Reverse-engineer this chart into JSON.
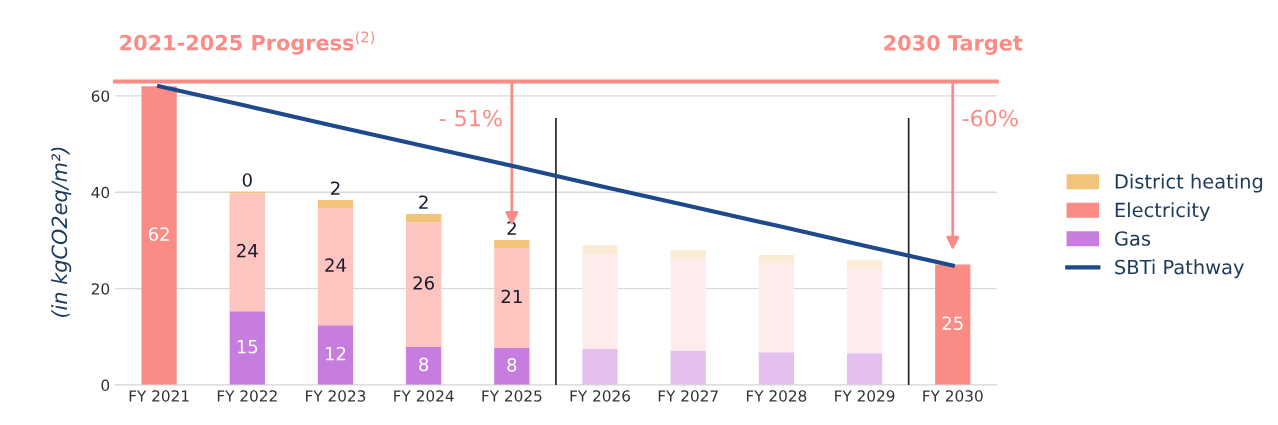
{
  "chart_data": {
    "type": "bar",
    "stacked": true,
    "categories": [
      "FY 2021",
      "FY 2022",
      "FY 2023",
      "FY 2024",
      "FY 2025",
      "FY 2026",
      "FY 2027",
      "FY 2028",
      "FY 2029",
      "FY 2030"
    ],
    "ylabel": "(in kgCO2eq/m²)",
    "ylim": [
      0,
      63.5
    ],
    "yticks": [
      0,
      20,
      40,
      60
    ],
    "grid": "y",
    "legend": "right",
    "series": [
      {
        "name": "Gas",
        "color": "#c77de0",
        "values": [
          null,
          15.3,
          12.4,
          7.9,
          7.7,
          7.5,
          7.1,
          6.8,
          6.6,
          null
        ],
        "colors": [
          "#c77de0",
          "#c77de0",
          "#c77de0",
          "#c77de0",
          "#c77de0",
          "#e3c0ef",
          "#e3c0ef",
          "#e3c0ef",
          "#e3c0ef",
          "#c77de0"
        ],
        "value_labels": [
          null,
          "15",
          "12",
          "8",
          "8",
          null,
          null,
          null,
          null,
          null
        ]
      },
      {
        "name": "Electricity",
        "color": "#fa8c85",
        "values": [
          62,
          24.5,
          24.3,
          25.9,
          20.7,
          19.7,
          19.0,
          18.5,
          17.7,
          25
        ],
        "colors": [
          "#fa8c85",
          "#fdc4c0",
          "#fdc4c0",
          "#fdc4c0",
          "#fdc4c0",
          "#fdeceb",
          "#fdeceb",
          "#fdeceb",
          "#fdeceb",
          "#fa8c85"
        ],
        "value_labels": [
          "62",
          "24",
          "24",
          "26",
          "21",
          null,
          null,
          null,
          null,
          "25"
        ]
      },
      {
        "name": "District heating",
        "color": "#f2c47a",
        "values": [
          null,
          0.3,
          1.7,
          1.7,
          1.7,
          1.8,
          1.9,
          1.7,
          1.6,
          null
        ],
        "colors": [
          "#f2c47a",
          "#f2c47a",
          "#f2c47a",
          "#f2c47a",
          "#f2c47a",
          "#faebd5",
          "#faebd5",
          "#faebd5",
          "#faebd5",
          "#f2c47a"
        ],
        "value_labels": [
          null,
          "0",
          "2",
          "2",
          "2",
          null,
          null,
          null,
          null,
          null
        ]
      },
      {
        "name": "SBTi Pathway",
        "type": "line",
        "color": "#1e4a8c",
        "values": [
          62,
          57.9,
          53.7,
          49.6,
          45.5,
          41.3,
          37.2,
          33.1,
          28.9,
          24.8
        ]
      }
    ],
    "ref_lines": [
      {
        "axis": "y",
        "value": 63,
        "color": "#fa8c85"
      }
    ],
    "annotations": [
      {
        "text": "2021-2025 Progress$^{(2)}$",
        "x": "FY 2022",
        "y": 63
      },
      {
        "text": "2030 Target",
        "x": "FY 2030",
        "y": 63
      },
      "- 51%",
      "-60%"
    ]
  }
}
